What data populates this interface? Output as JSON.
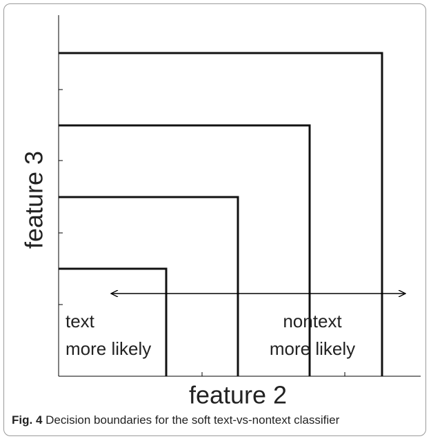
{
  "figure": {
    "y_axis_label": "feature 3",
    "x_axis_label": "feature 2",
    "left_label": [
      "text",
      "more likely"
    ],
    "right_label": [
      "nontext",
      "more likely"
    ],
    "caption": {
      "label": "Fig. 4",
      "text": "Decision boundaries for the soft text-vs-nontext classifier"
    }
  }
}
